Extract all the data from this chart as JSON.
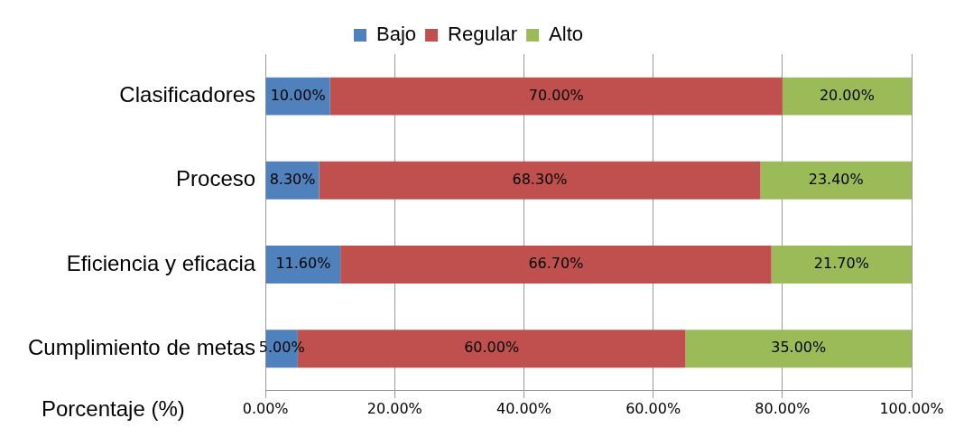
{
  "chart_data": {
    "type": "bar",
    "orientation": "horizontal",
    "stacked": true,
    "xlabel": "Porcentaje (%)",
    "categories": [
      "Clasificadores",
      "Proceso",
      "Eficiencia y eficacia",
      "Cumplimiento de metas"
    ],
    "series": [
      {
        "name": "Bajo",
        "color": "#4f81bd",
        "values": [
          10,
          8.3,
          11.6,
          5
        ],
        "value_labels": [
          "10.00%",
          "8.30%",
          "11.60%",
          "5.00%"
        ]
      },
      {
        "name": "Regular",
        "color": "#c0504d",
        "values": [
          70,
          68.3,
          66.7,
          60
        ],
        "value_labels": [
          "70.00%",
          "68.30%",
          "66.70%",
          "60.00%"
        ]
      },
      {
        "name": "Alto",
        "color": "#9bbb59",
        "values": [
          20,
          23.4,
          21.7,
          35
        ],
        "value_labels": [
          "20.00%",
          "23.40%",
          "21.70%",
          "35.00%"
        ]
      }
    ],
    "xlim": [
      0,
      100
    ],
    "xticks": [
      {
        "value": 0,
        "label": "0.00%"
      },
      {
        "value": 20,
        "label": "20.00%"
      },
      {
        "value": 40,
        "label": "40.00%"
      },
      {
        "value": 60,
        "label": "60.00%"
      },
      {
        "value": 80,
        "label": "80.00%"
      },
      {
        "value": 100,
        "label": "100.00%"
      }
    ],
    "grid": "x",
    "legend": "top"
  }
}
